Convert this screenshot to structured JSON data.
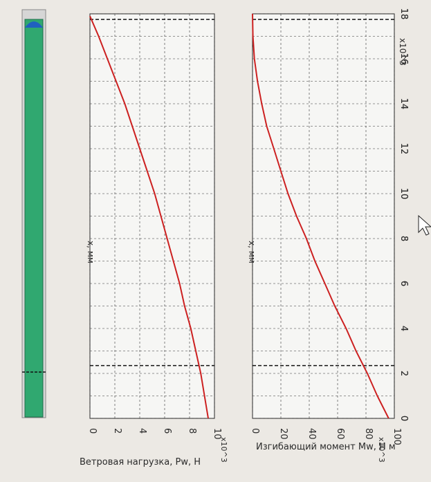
{
  "chart_data": [
    {
      "type": "line",
      "xlabel": "x, мм",
      "ylabel": "Ветровая нагрузка, Pw, Н",
      "y_multiplier": "x10^3",
      "x_multiplier": "x10^3",
      "xlim": [
        0,
        18
      ],
      "ylim": [
        0,
        10
      ],
      "x_ticks": [
        "0",
        "2",
        "4",
        "6",
        "8",
        "10",
        "12",
        "14",
        "16",
        "18"
      ],
      "y_ticks": [
        "0",
        "2",
        "4",
        "6",
        "8",
        "10"
      ],
      "series": [
        {
          "color": "#cc2020",
          "x": [
            0,
            1,
            2,
            3,
            4,
            5,
            6,
            7,
            8,
            9,
            10,
            11,
            12,
            13,
            14,
            15,
            16,
            17,
            17.9
          ],
          "y": [
            9.5,
            9.2,
            8.9,
            8.5,
            8.1,
            7.6,
            7.2,
            6.7,
            6.2,
            5.7,
            5.2,
            4.6,
            4.0,
            3.4,
            2.8,
            2.1,
            1.4,
            0.7,
            0
          ]
        }
      ],
      "markers_x": [
        2.35,
        17.75
      ],
      "grid": true
    },
    {
      "type": "line",
      "xlabel": "x, мм",
      "ylabel": "Изгибающий момент Mw, Н м",
      "y_multiplier": "x10^3",
      "x_multiplier": "x10^3",
      "xlim": [
        0,
        18
      ],
      "ylim": [
        0,
        100
      ],
      "x_ticks": [
        "0",
        "2",
        "4",
        "6",
        "8",
        "10",
        "12",
        "14",
        "16",
        "18"
      ],
      "y_ticks": [
        "0",
        "20",
        "40",
        "60",
        "80",
        "100"
      ],
      "series": [
        {
          "color": "#cc2020",
          "x": [
            0,
            1,
            2,
            3,
            4,
            5,
            6,
            7,
            8,
            9,
            10,
            11,
            12,
            13,
            14,
            15,
            16,
            17,
            18
          ],
          "y": [
            96,
            88,
            81,
            73,
            66,
            58,
            51,
            44,
            38,
            31,
            25,
            20,
            15,
            10,
            6.5,
            3.5,
            1.3,
            0.3,
            0
          ]
        }
      ],
      "markers_x": [
        2.35,
        17.75
      ],
      "grid": true
    }
  ],
  "column": {
    "body_color": "#2ea86a",
    "cap_color": "#2060c0"
  }
}
